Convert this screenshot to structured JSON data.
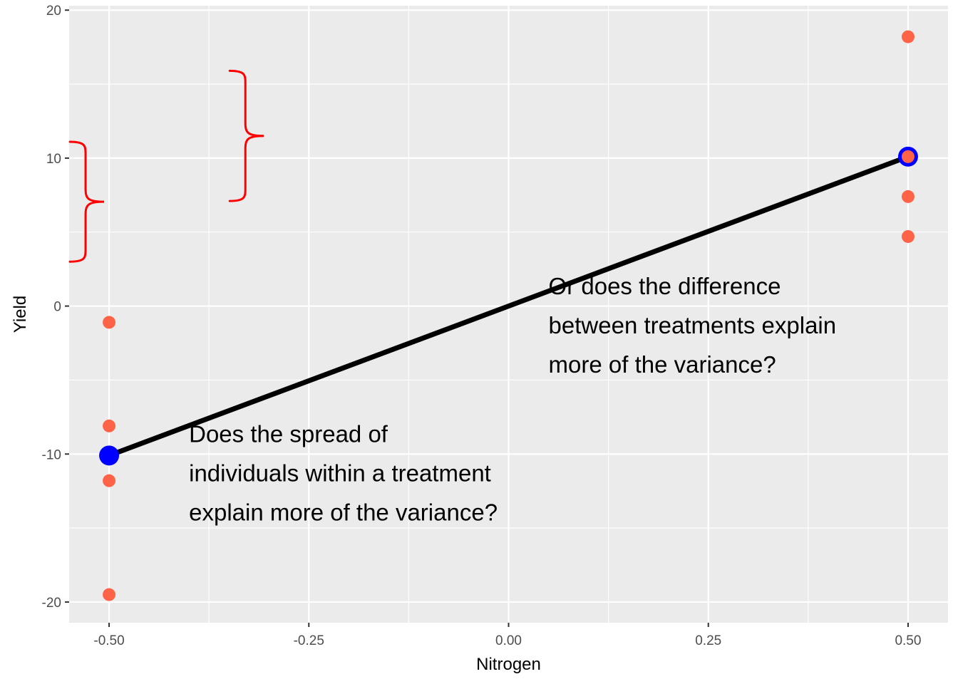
{
  "chart_data": {
    "type": "scatter",
    "title": "",
    "xlabel": "Nitrogen",
    "ylabel": "Yield",
    "xlim": [
      -0.55,
      0.55
    ],
    "ylim": [
      -21.4,
      20.3
    ],
    "x_ticks": [
      -0.5,
      -0.25,
      0.0,
      0.25,
      0.5
    ],
    "x_tick_labels": [
      "-0.50",
      "-0.25",
      "0.00",
      "0.25",
      "0.50"
    ],
    "y_ticks": [
      -20,
      -10,
      0,
      10,
      20
    ],
    "y_tick_labels": [
      "-20",
      "-10",
      "0",
      "10",
      "20"
    ],
    "grid": true,
    "colors": {
      "panel": "#ebebeb",
      "grid": "#ffffff",
      "points": "#ff6347",
      "means": "#0000ff",
      "line": "#000000",
      "braces": "#ff0000"
    },
    "series": [
      {
        "kind": "points",
        "points": [
          {
            "x": -0.5,
            "y": -1.1
          },
          {
            "x": -0.5,
            "y": -8.1
          },
          {
            "x": -0.5,
            "y": -11.8
          },
          {
            "x": -0.5,
            "y": -19.5
          },
          {
            "x": 0.5,
            "y": 18.2
          },
          {
            "x": 0.5,
            "y": 10.1
          },
          {
            "x": 0.5,
            "y": 7.4
          },
          {
            "x": 0.5,
            "y": 4.7
          }
        ]
      },
      {
        "kind": "means",
        "points": [
          {
            "x": -0.5,
            "y": -10.1
          },
          {
            "x": 0.5,
            "y": 10.1
          }
        ]
      }
    ],
    "fit_line": {
      "x": [
        -0.5,
        0.5
      ],
      "y": [
        -10.1,
        10.1
      ]
    },
    "annotations": [
      {
        "lines": [
          "Or does the difference",
          "between treatments explain",
          "more of the variance?"
        ],
        "x": 0.05,
        "y": 0.8
      },
      {
        "lines": [
          "Does the spread of",
          "individuals within a treatment",
          "explain more of the variance?"
        ],
        "x": -0.4,
        "y": -9.2
      }
    ],
    "braces": [
      {
        "x": -0.5,
        "y_top": 11.1,
        "y_bottom": 3.0,
        "direction": "right"
      },
      {
        "x": -0.3,
        "y_top": 15.9,
        "y_bottom": 7.1,
        "direction": "right"
      }
    ]
  }
}
